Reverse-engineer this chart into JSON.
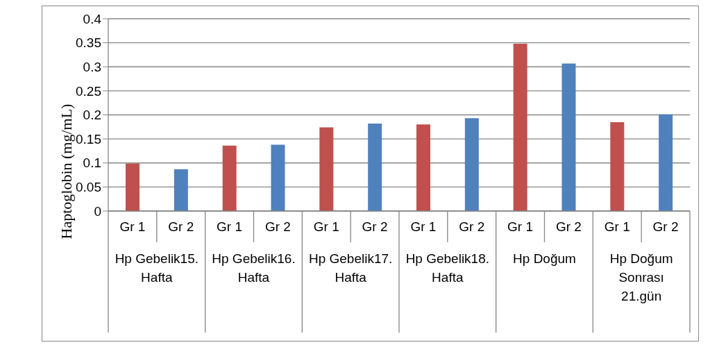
{
  "chart_data": {
    "type": "bar",
    "ylabel": "Haptoglobin (mg/mL)",
    "categories": [
      "Gr 1",
      "Gr 2",
      "Gr 1",
      "Gr 2",
      "Gr 1",
      "Gr 2",
      "Gr 1",
      "Gr 2",
      "Gr 1",
      "Gr 2",
      "Gr 1",
      "Gr 2"
    ],
    "values": [
      0.099,
      0.087,
      0.136,
      0.138,
      0.174,
      0.182,
      0.18,
      0.193,
      0.348,
      0.307,
      0.185,
      0.201
    ],
    "colors": [
      "#c0504d",
      "#4f81bd",
      "#c0504d",
      "#4f81bd",
      "#c0504d",
      "#4f81bd",
      "#c0504d",
      "#4f81bd",
      "#c0504d",
      "#4f81bd",
      "#c0504d",
      "#4f81bd"
    ],
    "annotations": [
      "Hp Gebelik15. Hafta",
      "Hp Gebelik16. Hafta",
      "Hp Gebelik17. Hafta",
      "Hp Gebelik18. Hafta",
      "Hp Doğum",
      "Hp Doğum Sonrası 21.gün"
    ],
    "ylim": [
      0,
      0.4
    ],
    "yticks": [
      0,
      0.05,
      0.1,
      0.15,
      0.2,
      0.25,
      0.3,
      0.35,
      0.4
    ],
    "grid": "y",
    "legend": false
  }
}
